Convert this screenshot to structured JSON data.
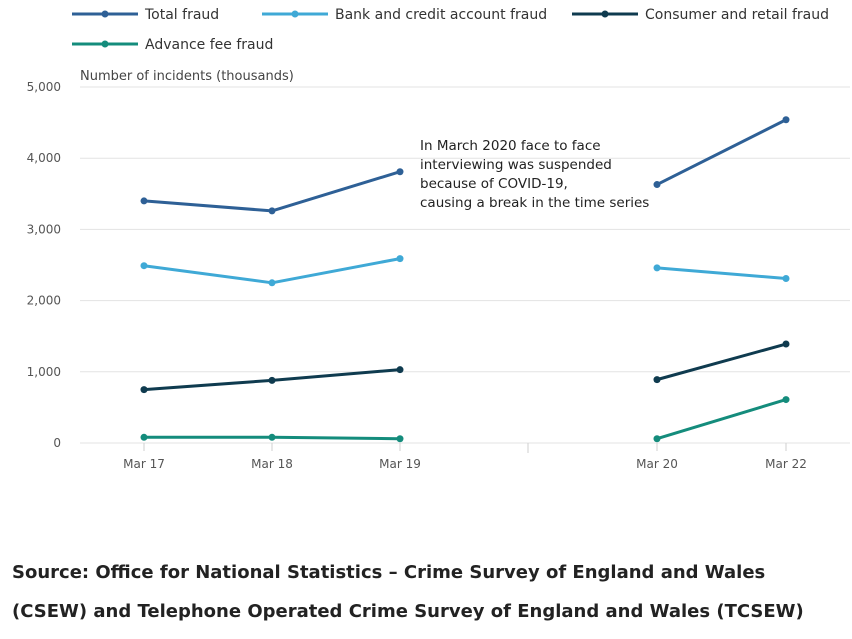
{
  "chart_data": {
    "type": "line",
    "ylabel": "Number of incidents (thousands)",
    "xlabel": "",
    "ylim": [
      0,
      5000
    ],
    "yticks": [
      0,
      1000,
      2000,
      3000,
      4000,
      5000
    ],
    "ytick_labels": [
      "0",
      "1,000",
      "2,000",
      "3,000",
      "4,000",
      "5,000"
    ],
    "categories": [
      "Mar 17",
      "Mar 18",
      "Mar 19",
      "Mar 20",
      "Mar 22"
    ],
    "break_after_index": 2,
    "grid": "horizontal",
    "legend_position": "top",
    "series": [
      {
        "name": "Total fraud",
        "color": "#2e6096",
        "values": [
          3400,
          3260,
          3810,
          3630,
          4540
        ]
      },
      {
        "name": "Bank and credit account fraud",
        "color": "#3fa9d6",
        "values": [
          2490,
          2250,
          2590,
          2460,
          2310
        ]
      },
      {
        "name": "Consumer and retail fraud",
        "color": "#0f3b4f",
        "values": [
          750,
          880,
          1030,
          890,
          1390
        ]
      },
      {
        "name": "Advance fee fraud",
        "color": "#148c7c",
        "values": [
          80,
          80,
          60,
          60,
          610
        ]
      }
    ],
    "annotation": [
      "In March 2020 face to face",
      "interviewing was suspended",
      "because of COVID-19,",
      "causing a break in the time series"
    ]
  },
  "source": {
    "line1": "Source: Office for National Statistics – Crime Survey of England and Wales",
    "line2": "(CSEW) and Telephone Operated Crime Survey of England and Wales (TCSEW)"
  }
}
